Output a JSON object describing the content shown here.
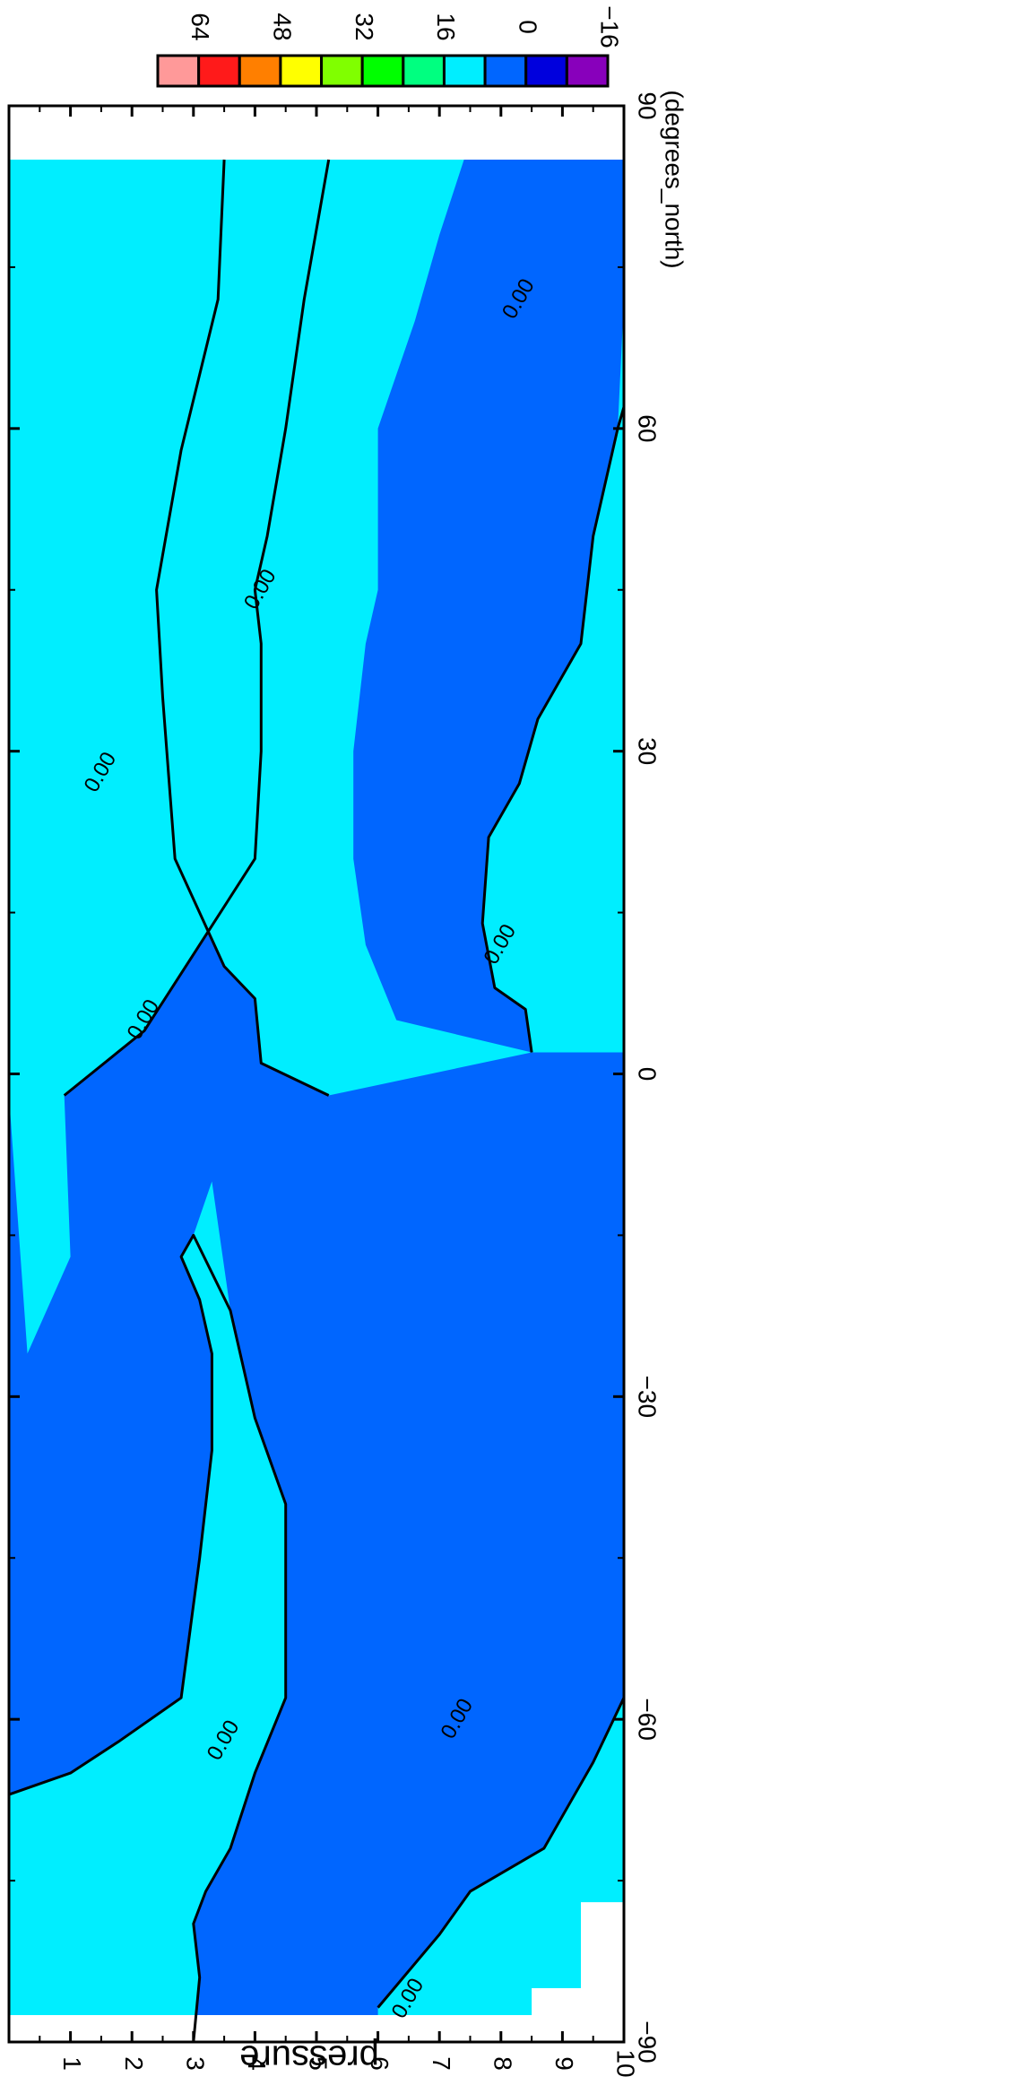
{
  "chart_data": {
    "type": "contour",
    "title": "",
    "xlabel": "",
    "ylabel": "pressure",
    "x_units": "(degrees_north)",
    "xlim": [
      -90,
      90
    ],
    "ylim": [
      0,
      10
    ],
    "x_ticks": [
      "-90",
      "-60",
      "-30",
      "0",
      "30",
      "60",
      "90"
    ],
    "y_ticks": [
      "1",
      "2",
      "3",
      "4",
      "5",
      "6",
      "7",
      "8",
      "9",
      "10"
    ],
    "contour_label": "0.00",
    "contour_level": 0,
    "colorbar": {
      "tick_labels": [
        "64",
        "48",
        "32",
        "16",
        "0",
        "-16"
      ],
      "colors": [
        "#ff9999",
        "#ff1a1a",
        "#ff7f00",
        "#ffff00",
        "#80ff00",
        "#00ff00",
        "#00ff80",
        "#00eeff",
        "#0066ff",
        "#0000dd",
        "#8800bb"
      ]
    },
    "fill_colors": {
      "negative": "#0066ff",
      "positive": "#00eeff",
      "missing": "#ffffff"
    },
    "x_data_range": [
      -87.5,
      85
    ],
    "boundary": [
      [
        -86.8,
        6.0
      ],
      [
        -80,
        7.0
      ],
      [
        -76,
        7.5
      ],
      [
        -72,
        8.7
      ],
      [
        -64,
        9.5
      ],
      [
        -58,
        10.0
      ]
    ],
    "positive_regions": [
      [
        [
          -90,
          0
        ],
        [
          -67,
          0
        ],
        [
          -65,
          1.0
        ],
        [
          -62,
          1.8
        ],
        [
          -58,
          2.8
        ],
        [
          -45,
          3.1
        ],
        [
          -35,
          3.3
        ],
        [
          -26,
          3.3
        ],
        [
          -21,
          3.1
        ],
        [
          -17,
          2.8
        ],
        [
          -15,
          3.0
        ],
        [
          -10,
          3.3
        ],
        [
          -22,
          3.6
        ],
        [
          -32,
          4.0
        ],
        [
          -40,
          4.5
        ],
        [
          -50,
          4.5
        ],
        [
          -58,
          4.5
        ],
        [
          -65,
          4.0
        ],
        [
          -72,
          3.6
        ],
        [
          -76,
          3.2
        ],
        [
          -79,
          3.0
        ],
        [
          -84,
          3.1
        ],
        [
          -90,
          3.0
        ]
      ],
      [
        [
          -90,
          6.0
        ],
        [
          -86.8,
          6.0
        ],
        [
          -80,
          7.0
        ],
        [
          -76,
          7.5
        ],
        [
          -72,
          8.7
        ],
        [
          -64,
          9.5
        ],
        [
          -58,
          10.0
        ],
        [
          -90,
          10.0
        ]
      ],
      [
        [
          -2,
          0
        ],
        [
          85,
          0
        ],
        [
          85,
          5.2
        ],
        [
          72,
          4.8
        ],
        [
          60,
          4.5
        ],
        [
          50,
          4.2
        ],
        [
          45,
          4.0
        ],
        [
          40,
          4.1
        ],
        [
          30,
          4.1
        ],
        [
          20,
          4.0
        ],
        [
          12,
          3.1
        ],
        [
          4,
          2.2
        ],
        [
          -2,
          0.9
        ],
        [
          -17,
          1.0
        ],
        [
          -26,
          0.3
        ]
      ],
      [
        [
          20,
          0
        ],
        [
          30,
          0
        ],
        [
          42,
          0.3
        ],
        [
          60,
          1.2
        ],
        [
          68,
          0.9
        ],
        [
          75,
          0.5
        ],
        [
          80,
          0.1
        ],
        [
          85,
          0.2
        ],
        [
          85,
          1.8
        ],
        [
          75,
          2.2
        ],
        [
          60,
          2.3
        ],
        [
          45,
          2.0
        ],
        [
          35,
          1.6
        ],
        [
          28,
          1.4
        ],
        [
          25,
          1.0
        ],
        [
          20,
          0.8
        ]
      ],
      [
        [
          -2,
          5.2
        ],
        [
          1,
          4.1
        ],
        [
          7,
          4.0
        ],
        [
          10,
          3.5
        ],
        [
          20,
          2.7
        ],
        [
          35,
          2.5
        ],
        [
          45,
          2.4
        ],
        [
          58,
          2.8
        ],
        [
          72,
          3.4
        ],
        [
          80,
          3.5
        ],
        [
          85,
          3.5
        ],
        [
          85,
          7.4
        ],
        [
          78,
          7.0
        ],
        [
          70,
          6.6
        ],
        [
          60,
          6.0
        ],
        [
          45,
          6.0
        ],
        [
          40,
          5.8
        ],
        [
          30,
          5.6
        ],
        [
          20,
          5.6
        ],
        [
          12,
          5.8
        ],
        [
          5,
          6.3
        ],
        [
          2,
          8.5
        ],
        [
          6,
          8.4
        ],
        [
          8,
          7.9
        ],
        [
          14,
          7.7
        ],
        [
          22,
          7.8
        ],
        [
          27,
          8.3
        ],
        [
          33,
          8.6
        ],
        [
          40,
          9.3
        ],
        [
          50,
          9.5
        ],
        [
          60,
          9.9
        ],
        [
          72,
          10.0
        ],
        [
          85,
          10.0
        ],
        [
          85,
          10.0
        ],
        [
          2,
          10.0
        ],
        [
          2,
          8.5
        ]
      ]
    ],
    "contours": [
      [
        [
          -90,
          3.0
        ],
        [
          -84,
          3.1
        ],
        [
          -79,
          3.0
        ],
        [
          -76,
          3.2
        ],
        [
          -72,
          3.6
        ],
        [
          -65,
          4.0
        ],
        [
          -58,
          4.5
        ],
        [
          -50,
          4.5
        ],
        [
          -40,
          4.5
        ],
        [
          -32,
          4.0
        ],
        [
          -22,
          3.6
        ],
        [
          -15,
          3.0
        ],
        [
          -17,
          2.8
        ],
        [
          -21,
          3.1
        ],
        [
          -26,
          3.3
        ],
        [
          -35,
          3.3
        ],
        [
          -45,
          3.1
        ],
        [
          -58,
          2.8
        ],
        [
          -62,
          1.8
        ],
        [
          -65,
          1.0
        ],
        [
          -67,
          0
        ]
      ],
      [
        [
          -86.8,
          6.0
        ],
        [
          -80,
          7.0
        ],
        [
          -76,
          7.5
        ],
        [
          -72,
          8.7
        ],
        [
          -64,
          9.5
        ],
        [
          -58,
          10.0
        ]
      ],
      [
        [
          -2,
          0.9
        ],
        [
          4,
          2.2
        ],
        [
          12,
          3.1
        ],
        [
          20,
          4.0
        ],
        [
          30,
          4.1
        ],
        [
          40,
          4.1
        ],
        [
          45,
          4.0
        ],
        [
          50,
          4.2
        ],
        [
          60,
          4.5
        ],
        [
          72,
          4.8
        ],
        [
          85,
          5.2
        ]
      ],
      [
        [
          -2,
          5.2
        ],
        [
          1,
          4.1
        ],
        [
          7,
          4.0
        ],
        [
          10,
          3.5
        ],
        [
          20,
          2.7
        ],
        [
          35,
          2.5
        ],
        [
          45,
          2.4
        ],
        [
          58,
          2.8
        ],
        [
          72,
          3.4
        ],
        [
          85,
          3.5
        ]
      ],
      [
        [
          2,
          8.5
        ],
        [
          6,
          8.4
        ],
        [
          8,
          7.9
        ],
        [
          14,
          7.7
        ],
        [
          22,
          7.8
        ],
        [
          27,
          8.3
        ],
        [
          33,
          8.6
        ],
        [
          40,
          9.3
        ],
        [
          50,
          9.5
        ],
        [
          60,
          9.9
        ],
        [
          62,
          10.0
        ]
      ]
    ],
    "contour_label_positions": [
      [
        -62,
        3.5
      ],
      [
        -86,
        6.5
      ],
      [
        -60,
        7.3
      ],
      [
        5,
        2.2
      ],
      [
        28,
        1.5
      ],
      [
        45,
        4.1
      ],
      [
        12,
        8.0
      ],
      [
        72,
        8.3
      ]
    ]
  }
}
